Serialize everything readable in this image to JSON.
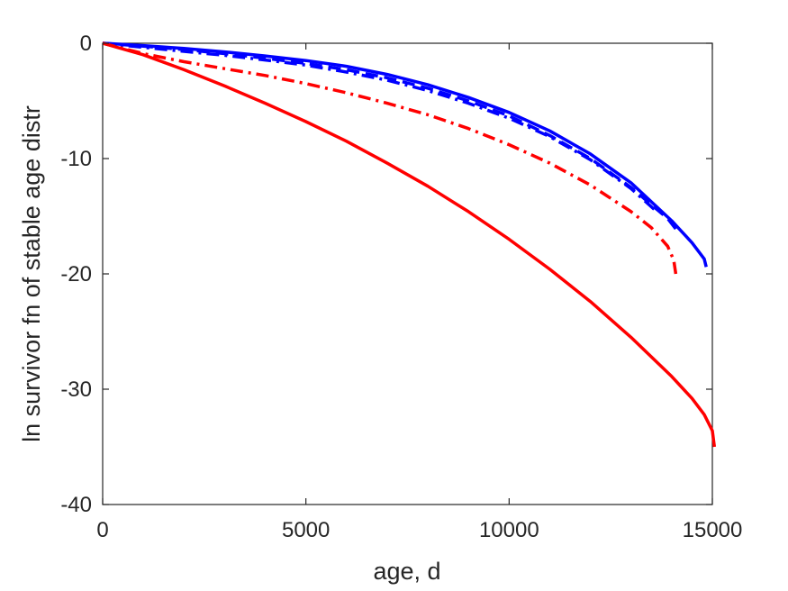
{
  "chart_data": {
    "type": "line",
    "title": "",
    "xlabel": "age, d",
    "ylabel": "ln survivor fn of stable age distr",
    "xlim": [
      0,
      15000
    ],
    "ylim": [
      -40,
      0
    ],
    "xticks": [
      0,
      5000,
      10000,
      15000
    ],
    "xtick_labels": [
      "0",
      "5000",
      "10000",
      "15000"
    ],
    "yticks": [
      0,
      -10,
      -20,
      -30,
      -40
    ],
    "ytick_labels": [
      "0",
      "-10",
      "-20",
      "-30",
      "-40"
    ],
    "grid": false,
    "box": true,
    "series": [
      {
        "color": "#0000ff",
        "style": "solid",
        "x": [
          0,
          1000,
          2000,
          3000,
          4000,
          5000,
          6000,
          7000,
          8000,
          9000,
          10000,
          11000,
          12000,
          13000,
          14000,
          14500,
          14800,
          14850
        ],
        "y": [
          0,
          -0.2,
          -0.45,
          -0.75,
          -1.1,
          -1.5,
          -2.0,
          -2.7,
          -3.6,
          -4.7,
          -6.0,
          -7.6,
          -9.6,
          -12.1,
          -15.4,
          -17.3,
          -18.7,
          -19.4
        ]
      },
      {
        "color": "#0000ff",
        "style": "dashed",
        "x": [
          0,
          1000,
          2000,
          3000,
          4000,
          5000,
          6000,
          7000,
          8000,
          9000,
          10000,
          11000,
          12000,
          13000,
          13500,
          13900,
          14100
        ],
        "y": [
          0,
          -0.25,
          -0.55,
          -0.9,
          -1.3,
          -1.75,
          -2.3,
          -3.0,
          -3.9,
          -5.0,
          -6.3,
          -8.0,
          -10.0,
          -12.5,
          -14.0,
          -15.2,
          -16.1
        ]
      },
      {
        "color": "#0000ff",
        "style": "dashdot",
        "x": [
          0,
          1000,
          2000,
          3000,
          4000,
          5000,
          6000,
          7000,
          8000,
          9000,
          10000,
          11000,
          12000,
          13000,
          13600
        ],
        "y": [
          0,
          -0.35,
          -0.7,
          -1.05,
          -1.45,
          -1.9,
          -2.5,
          -3.2,
          -4.1,
          -5.2,
          -6.5,
          -8.1,
          -10.1,
          -12.6,
          -14.5
        ]
      },
      {
        "color": "#ff0000",
        "style": "dashdot",
        "x": [
          0,
          1000,
          2000,
          3000,
          4000,
          5000,
          6000,
          7000,
          8000,
          9000,
          10000,
          11000,
          12000,
          13000,
          13500,
          13900,
          14050,
          14100
        ],
        "y": [
          0,
          -0.9,
          -1.6,
          -2.2,
          -2.8,
          -3.5,
          -4.3,
          -5.2,
          -6.2,
          -7.4,
          -8.8,
          -10.4,
          -12.3,
          -14.6,
          -16.0,
          -17.6,
          -18.8,
          -20.0
        ]
      },
      {
        "color": "#ff0000",
        "style": "solid",
        "x": [
          0,
          1000,
          2000,
          3000,
          4000,
          5000,
          6000,
          7000,
          8000,
          9000,
          10000,
          11000,
          12000,
          13000,
          14000,
          14500,
          14800,
          15000,
          15050
        ],
        "y": [
          0,
          -1.0,
          -2.3,
          -3.7,
          -5.2,
          -6.8,
          -8.5,
          -10.4,
          -12.4,
          -14.6,
          -17.0,
          -19.6,
          -22.4,
          -25.5,
          -28.9,
          -30.8,
          -32.2,
          -33.6,
          -35.0
        ]
      }
    ]
  }
}
